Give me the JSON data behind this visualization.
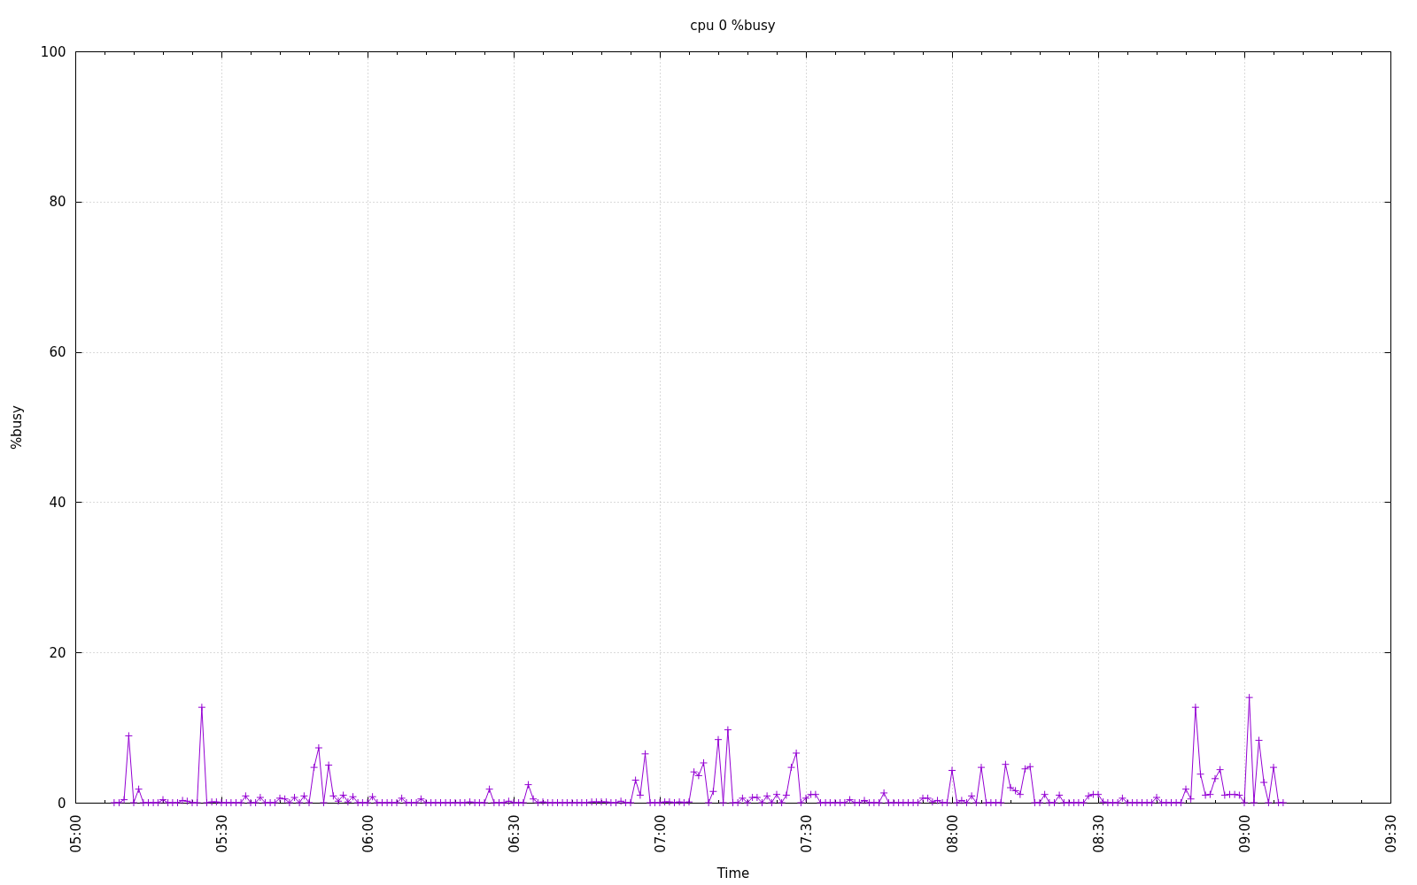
{
  "chart_data": {
    "type": "line",
    "title": "cpu 0 %busy",
    "xlabel": "Time",
    "ylabel": "%busy",
    "x": [
      5.133,
      5.15,
      5.167,
      5.183,
      5.2,
      5.217,
      5.233,
      5.25,
      5.267,
      5.283,
      5.3,
      5.317,
      5.333,
      5.35,
      5.367,
      5.383,
      5.4,
      5.417,
      5.433,
      5.45,
      5.467,
      5.483,
      5.5,
      5.517,
      5.533,
      5.55,
      5.567,
      5.583,
      5.6,
      5.617,
      5.633,
      5.65,
      5.667,
      5.683,
      5.7,
      5.717,
      5.733,
      5.75,
      5.767,
      5.783,
      5.8,
      5.817,
      5.833,
      5.85,
      5.867,
      5.883,
      5.9,
      5.917,
      5.933,
      5.95,
      5.967,
      5.983,
      6,
      6.017,
      6.033,
      6.05,
      6.067,
      6.083,
      6.1,
      6.117,
      6.133,
      6.15,
      6.167,
      6.183,
      6.2,
      6.217,
      6.233,
      6.25,
      6.267,
      6.283,
      6.3,
      6.317,
      6.333,
      6.35,
      6.367,
      6.383,
      6.4,
      6.417,
      6.433,
      6.45,
      6.467,
      6.483,
      6.5,
      6.517,
      6.533,
      6.55,
      6.567,
      6.583,
      6.6,
      6.617,
      6.633,
      6.65,
      6.667,
      6.683,
      6.7,
      6.717,
      6.733,
      6.75,
      6.767,
      6.783,
      6.8,
      6.817,
      6.833,
      6.85,
      6.867,
      6.883,
      6.9,
      6.917,
      6.933,
      6.95,
      6.967,
      6.983,
      7,
      7.017,
      7.033,
      7.05,
      7.067,
      7.083,
      7.1,
      7.117,
      7.133,
      7.15,
      7.167,
      7.183,
      7.2,
      7.217,
      7.233,
      7.25,
      7.267,
      7.283,
      7.3,
      7.317,
      7.333,
      7.35,
      7.367,
      7.383,
      7.4,
      7.417,
      7.433,
      7.45,
      7.467,
      7.483,
      7.5,
      7.517,
      7.533,
      7.55,
      7.567,
      7.583,
      7.6,
      7.617,
      7.633,
      7.65,
      7.667,
      7.683,
      7.7,
      7.717,
      7.733,
      7.75,
      7.767,
      7.783,
      7.8,
      7.817,
      7.833,
      7.85,
      7.867,
      7.883,
      7.9,
      7.917,
      7.933,
      7.95,
      7.967,
      7.983,
      8,
      8.017,
      8.033,
      8.05,
      8.067,
      8.083,
      8.1,
      8.117,
      8.133,
      8.15,
      8.167,
      8.183,
      8.2,
      8.217,
      8.233,
      8.25,
      8.267,
      8.283,
      8.3,
      8.317,
      8.333,
      8.35,
      8.367,
      8.383,
      8.4,
      8.417,
      8.433,
      8.45,
      8.467,
      8.483,
      8.5,
      8.517,
      8.533,
      8.55,
      8.567,
      8.583,
      8.6,
      8.617,
      8.633,
      8.65,
      8.667,
      8.683,
      8.7,
      8.717,
      8.733,
      8.75,
      8.767,
      8.783,
      8.8,
      8.817,
      8.833,
      8.85,
      8.867,
      8.883,
      8.9,
      8.917,
      8.933,
      8.95,
      8.967,
      8.983,
      9,
      9.017,
      9.033,
      9.05,
      9.067,
      9.083,
      9.1,
      9.117,
      9.133
    ],
    "series": [
      {
        "color": "#9400d3",
        "values": [
          0,
          0,
          0.4,
          8.9,
          0,
          1.8,
          0,
          0,
          0,
          0,
          0.4,
          0,
          0,
          0,
          0.3,
          0.2,
          0,
          0,
          12.7,
          0,
          0.1,
          0.1,
          0,
          0,
          0,
          0,
          0,
          0.9,
          0,
          0,
          0.7,
          0,
          0,
          0,
          0.6,
          0.5,
          0,
          0.7,
          0,
          0.9,
          0,
          4.7,
          7.3,
          0,
          5,
          0.9,
          0.2,
          1,
          0.1,
          0.8,
          0,
          0,
          0,
          0.8,
          0,
          0,
          0,
          0,
          0,
          0.6,
          0,
          0,
          0,
          0.5,
          0,
          0,
          0,
          0,
          0,
          0,
          0,
          0,
          0,
          0.1,
          0,
          0,
          0,
          1.8,
          0,
          0,
          0,
          0.2,
          0,
          0,
          0,
          2.4,
          0.5,
          0,
          0.1,
          0,
          0,
          0,
          0,
          0,
          0,
          0,
          0,
          0,
          0.1,
          0.1,
          0.1,
          0.1,
          0,
          0,
          0.2,
          0,
          0,
          3,
          1,
          6.5,
          0,
          0,
          0,
          0.1,
          0.1,
          0,
          0.1,
          0,
          0.1,
          4.1,
          3.6,
          5.3,
          0,
          1.5,
          8.4,
          0,
          9.7,
          0,
          0,
          0.6,
          0,
          0.7,
          0.7,
          0,
          0.9,
          0,
          1.1,
          0,
          1,
          4.7,
          6.6,
          0,
          0.6,
          1.1,
          1.1,
          0,
          0,
          0,
          0,
          0,
          0,
          0.4,
          0,
          0,
          0.3,
          0,
          0,
          0,
          1.3,
          0,
          0,
          0,
          0,
          0,
          0,
          0,
          0.6,
          0.6,
          0.1,
          0.3,
          0,
          0,
          4.3,
          0,
          0.3,
          0,
          0.9,
          0,
          4.7,
          0,
          0,
          0,
          0,
          5.1,
          2,
          1.6,
          1.1,
          4.5,
          4.8,
          0,
          0,
          1.1,
          0,
          0,
          1,
          0,
          0,
          0,
          0,
          0,
          0.9,
          1.1,
          1.1,
          0.1,
          0,
          0,
          0,
          0.6,
          0,
          0,
          0,
          0,
          0,
          0,
          0.7,
          0,
          0,
          0,
          0,
          0,
          1.8,
          0.5,
          12.7,
          3.8,
          1,
          1.1,
          3.2,
          4.4,
          1,
          1.1,
          1.1,
          1,
          0,
          14,
          0,
          8.3,
          2.7,
          0,
          4.7,
          0,
          0
        ]
      }
    ],
    "xlim": [
      5,
      9.5
    ],
    "xticks": [
      {
        "value": 5,
        "label": "05:00"
      },
      {
        "value": 5.1,
        "label": null
      },
      {
        "value": 5.2,
        "label": null
      },
      {
        "value": 5.3,
        "label": null
      },
      {
        "value": 5.4,
        "label": null
      },
      {
        "value": 5.5,
        "label": "05:30"
      },
      {
        "value": 5.6,
        "label": null
      },
      {
        "value": 5.7,
        "label": null
      },
      {
        "value": 5.8,
        "label": null
      },
      {
        "value": 5.9,
        "label": null
      },
      {
        "value": 6,
        "label": "06:00"
      },
      {
        "value": 6.1,
        "label": null
      },
      {
        "value": 6.2,
        "label": null
      },
      {
        "value": 6.3,
        "label": null
      },
      {
        "value": 6.4,
        "label": null
      },
      {
        "value": 6.5,
        "label": "06:30"
      },
      {
        "value": 6.6,
        "label": null
      },
      {
        "value": 6.7,
        "label": null
      },
      {
        "value": 6.8,
        "label": null
      },
      {
        "value": 6.9,
        "label": null
      },
      {
        "value": 7,
        "label": "07:00"
      },
      {
        "value": 7.1,
        "label": null
      },
      {
        "value": 7.2,
        "label": null
      },
      {
        "value": 7.3,
        "label": null
      },
      {
        "value": 7.4,
        "label": null
      },
      {
        "value": 7.5,
        "label": "07:30"
      },
      {
        "value": 7.6,
        "label": null
      },
      {
        "value": 7.7,
        "label": null
      },
      {
        "value": 7.8,
        "label": null
      },
      {
        "value": 7.9,
        "label": null
      },
      {
        "value": 8,
        "label": "08:00"
      },
      {
        "value": 8.1,
        "label": null
      },
      {
        "value": 8.2,
        "label": null
      },
      {
        "value": 8.3,
        "label": null
      },
      {
        "value": 8.4,
        "label": null
      },
      {
        "value": 8.5,
        "label": "08:30"
      },
      {
        "value": 8.6,
        "label": null
      },
      {
        "value": 8.7,
        "label": null
      },
      {
        "value": 8.8,
        "label": null
      },
      {
        "value": 8.9,
        "label": null
      },
      {
        "value": 9,
        "label": "09:00"
      },
      {
        "value": 9.1,
        "label": null
      },
      {
        "value": 9.2,
        "label": null
      },
      {
        "value": 9.3,
        "label": null
      },
      {
        "value": 9.4,
        "label": null
      },
      {
        "value": 9.5,
        "label": "09:30"
      }
    ],
    "ylim": [
      0,
      100
    ],
    "yticks": [
      0,
      20,
      40,
      60,
      80,
      100
    ],
    "grid": true,
    "marker": "cross"
  }
}
